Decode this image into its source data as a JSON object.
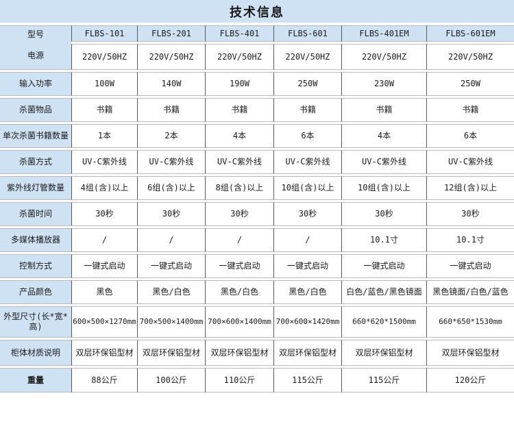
{
  "page": {
    "title": "技术信息"
  },
  "colors": {
    "panel_blue": "#cfe2f3",
    "border_dark": "#595959",
    "border_light": "#b9b9b9",
    "text": "#1a1a1a",
    "cell_white": "#ffffff"
  },
  "table": {
    "corner_label": "型号",
    "models": [
      "FLBS-101",
      "FLBS-201",
      "FLBS-401",
      "FLBS-601",
      "FLBS-401EM",
      "FLBS-601EM"
    ],
    "rows": [
      {
        "label": "电源",
        "values": [
          "220V/50HZ",
          "220V/50HZ",
          "220V/50HZ",
          "220V/50HZ",
          "220V/50HZ",
          "220V/50HZ"
        ]
      },
      {
        "label": "输入功率",
        "values": [
          "100W",
          "140W",
          "190W",
          "250W",
          "230W",
          "250W"
        ]
      },
      {
        "label": "杀菌物品",
        "values": [
          "书籍",
          "书籍",
          "书籍",
          "书籍",
          "书籍",
          "书籍"
        ]
      },
      {
        "label": "单次杀菌书籍数量",
        "values": [
          "1本",
          "2本",
          "4本",
          "6本",
          "4本",
          "6本"
        ]
      },
      {
        "label": "杀菌方式",
        "values": [
          "UV-C紫外线",
          "UV-C紫外线",
          "UV-C紫外线",
          "UV-C紫外线",
          "UV-C紫外线",
          "UV-C紫外线"
        ]
      },
      {
        "label": "紫外线灯管数量",
        "values": [
          "4组(含)以上",
          "6组(含)以上",
          "8组(含)以上",
          "10组(含)以上",
          "10组(含)以上",
          "12组(含)以上"
        ]
      },
      {
        "label": "杀菌时间",
        "values": [
          "30秒",
          "30秒",
          "30秒",
          "30秒",
          "30秒",
          "30秒"
        ]
      },
      {
        "label": "多媒体播放器",
        "values": [
          "/",
          "/",
          "/",
          "/",
          "10.1寸",
          "10.1寸"
        ]
      },
      {
        "label": "控制方式",
        "values": [
          "一键式启动",
          "一键式启动",
          "一键式启动",
          "一键式启动",
          "一键式启动",
          "一键式启动"
        ]
      },
      {
        "label": "产品颜色",
        "values": [
          "黑色",
          "黑色/白色",
          "黑色/白色",
          "黑色/白色",
          "白色/蓝色/黑色镜面",
          "黑色镜面/白色/蓝色"
        ]
      },
      {
        "label": "外型尺寸(长*宽*高)",
        "values": [
          "600×500×1270mm",
          "700×500×1400mm",
          "700×600×1400mm",
          "700×600×1420mm",
          "660*620*1500mm",
          "660*650*1530mm"
        ]
      },
      {
        "label": "柜体材质说明",
        "values": [
          "双层环保铝型材",
          "双层环保铝型材",
          "双层环保铝型材",
          "双层环保铝型材",
          "双层环保铝型材",
          "双层环保铝型材"
        ]
      },
      {
        "label": "重量",
        "bold": true,
        "values": [
          "88公斤",
          "100公斤",
          "110公斤",
          "115公斤",
          "115公斤",
          "120公斤"
        ]
      }
    ]
  }
}
